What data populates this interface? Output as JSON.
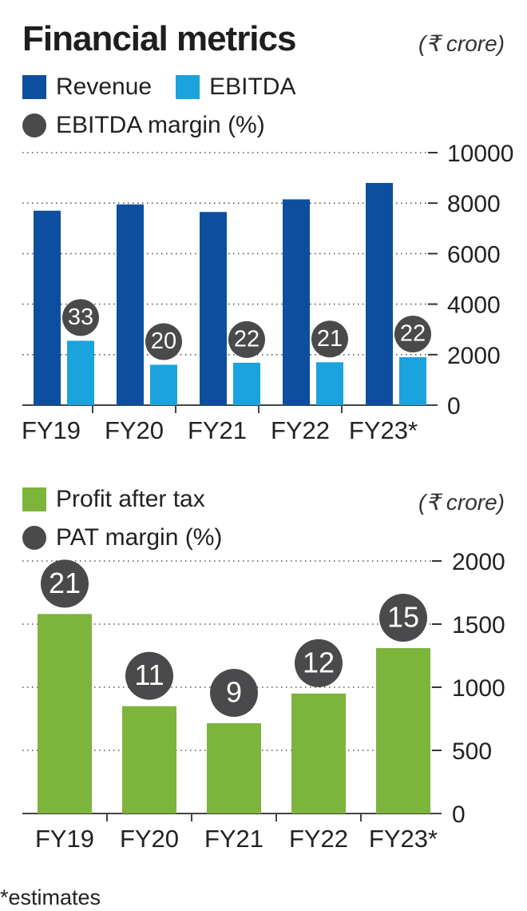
{
  "header": {
    "title": "Financial metrics",
    "unit": "(₹ crore)"
  },
  "legend1": {
    "revenue": "Revenue",
    "ebitda": "EBITDA",
    "margin": "EBITDA margin (%)"
  },
  "legend2": {
    "pat": "Profit after tax",
    "unit": "(₹ crore)",
    "margin": "PAT margin (%)"
  },
  "footnote": "*estimates",
  "colors": {
    "revenue": "#0d4f9e",
    "ebitda": "#1aa3dc",
    "pat": "#7db43c",
    "marker": "#4a4a4c",
    "marker_text": "#ffffff"
  },
  "chart_data": [
    {
      "type": "bar",
      "categories": [
        "FY19",
        "FY20",
        "FY21",
        "FY22",
        "FY23*"
      ],
      "series": [
        {
          "name": "Revenue",
          "values": [
            7700,
            7950,
            7650,
            8150,
            8800
          ]
        },
        {
          "name": "EBITDA",
          "values": [
            2550,
            1600,
            1680,
            1700,
            1900
          ]
        }
      ],
      "labels": [
        33,
        20,
        22,
        21,
        22
      ],
      "labels_name": "EBITDA margin (%)",
      "yticks": [
        0,
        2000,
        4000,
        6000,
        8000,
        10000
      ],
      "ylim": [
        0,
        10000
      ],
      "grid": true
    },
    {
      "type": "bar",
      "categories": [
        "FY19",
        "FY20",
        "FY21",
        "FY22",
        "FY23*"
      ],
      "series": [
        {
          "name": "Profit after tax",
          "values": [
            1580,
            850,
            715,
            950,
            1310
          ]
        }
      ],
      "labels": [
        21,
        11,
        9,
        12,
        15
      ],
      "labels_name": "PAT margin (%)",
      "yticks": [
        0,
        500,
        1000,
        1500,
        2000
      ],
      "ylim": [
        0,
        2000
      ],
      "grid": true
    }
  ]
}
